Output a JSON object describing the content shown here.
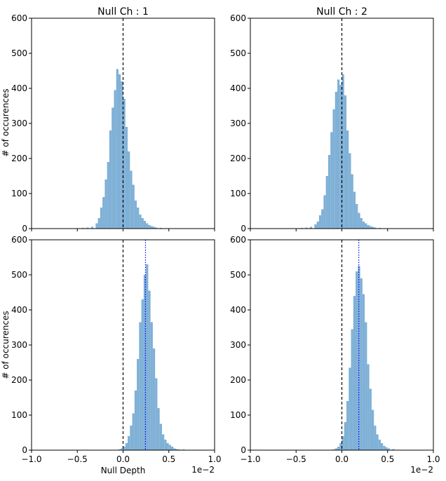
{
  "figure": {
    "titles": [
      "Null Ch : 1",
      "Null Ch : 2"
    ],
    "ylabel": "# of occurences",
    "xlabel": "Null Depth",
    "xaxis_offset_label": "1e−2",
    "colors": {
      "bars": "#7fb0d6",
      "zero_line": "#000000",
      "median_line": "#0000ff"
    }
  },
  "chart_data": [
    {
      "type": "bar",
      "panel": "top-left",
      "title": "Null Ch : 1",
      "xlabel": "",
      "ylabel": "# of occurences",
      "xlim": [
        -1.0,
        1.0
      ],
      "ylim": [
        0,
        600
      ],
      "yticks": [
        0,
        100,
        200,
        300,
        400,
        500,
        600
      ],
      "xticks": [
        -1.0,
        -0.5,
        0.0,
        0.5,
        1.0
      ],
      "x_scale_label": "1e−2",
      "bin_width": 0.025,
      "x": [
        -0.45,
        -0.4,
        -0.35,
        -0.3,
        -0.275,
        -0.25,
        -0.225,
        -0.2,
        -0.175,
        -0.15,
        -0.125,
        -0.1,
        -0.075,
        -0.05,
        -0.025,
        0.0,
        0.025,
        0.05,
        0.075,
        0.1,
        0.125,
        0.15,
        0.175,
        0.2,
        0.225,
        0.25,
        0.275,
        0.3,
        0.325,
        0.35,
        0.4,
        0.45
      ],
      "values": [
        2,
        3,
        5,
        15,
        30,
        60,
        90,
        140,
        190,
        280,
        345,
        395,
        455,
        440,
        420,
        370,
        290,
        220,
        165,
        125,
        80,
        60,
        40,
        30,
        22,
        15,
        10,
        7,
        5,
        3,
        2,
        1
      ],
      "vlines": [
        {
          "x": 0.0,
          "style": "dashed",
          "color": "#000000"
        }
      ]
    },
    {
      "type": "bar",
      "panel": "top-right",
      "title": "Null Ch : 2",
      "xlabel": "",
      "ylabel": "",
      "xlim": [
        -1.0,
        1.0
      ],
      "ylim": [
        0,
        600
      ],
      "yticks": [
        0,
        100,
        200,
        300,
        400,
        500,
        600
      ],
      "xticks": [
        -1.0,
        -0.5,
        0.0,
        0.5,
        1.0
      ],
      "x_scale_label": "1e−2",
      "bin_width": 0.025,
      "x": [
        -0.45,
        -0.4,
        -0.35,
        -0.3,
        -0.275,
        -0.25,
        -0.225,
        -0.2,
        -0.175,
        -0.15,
        -0.125,
        -0.1,
        -0.075,
        -0.05,
        -0.025,
        0.0,
        0.025,
        0.05,
        0.075,
        0.1,
        0.125,
        0.15,
        0.175,
        0.2,
        0.225,
        0.25,
        0.275,
        0.3,
        0.325,
        0.35,
        0.4,
        0.45
      ],
      "values": [
        2,
        3,
        5,
        12,
        20,
        38,
        55,
        95,
        150,
        210,
        275,
        340,
        390,
        425,
        410,
        440,
        380,
        280,
        215,
        155,
        105,
        70,
        45,
        30,
        20,
        15,
        10,
        7,
        5,
        3,
        2,
        1
      ],
      "vlines": [
        {
          "x": 0.0,
          "style": "dashed",
          "color": "#000000"
        }
      ]
    },
    {
      "type": "bar",
      "panel": "bottom-left",
      "title": "",
      "xlabel": "Null Depth",
      "ylabel": "# of occurences",
      "xlim": [
        -1.0,
        1.0
      ],
      "ylim": [
        0,
        600
      ],
      "yticks": [
        0,
        100,
        200,
        300,
        400,
        500,
        600
      ],
      "xticks": [
        -1.0,
        -0.5,
        0.0,
        0.5,
        1.0
      ],
      "x_scale_label": "1e−2",
      "bin_width": 0.025,
      "x": [
        -0.05,
        -0.025,
        0.0,
        0.025,
        0.05,
        0.075,
        0.1,
        0.125,
        0.15,
        0.175,
        0.2,
        0.225,
        0.25,
        0.275,
        0.3,
        0.325,
        0.35,
        0.375,
        0.4,
        0.425,
        0.45,
        0.475,
        0.5,
        0.525,
        0.55,
        0.575,
        0.6,
        0.65,
        0.7
      ],
      "values": [
        2,
        5,
        10,
        20,
        40,
        70,
        105,
        170,
        260,
        365,
        430,
        500,
        530,
        455,
        365,
        290,
        205,
        120,
        75,
        45,
        30,
        20,
        15,
        10,
        5,
        3,
        2,
        2,
        1
      ],
      "vlines": [
        {
          "x": 0.0,
          "style": "dashed",
          "color": "#000000"
        },
        {
          "x": 0.245,
          "style": "dotted",
          "color": "#0000ff"
        }
      ]
    },
    {
      "type": "bar",
      "panel": "bottom-right",
      "title": "",
      "xlabel": "",
      "ylabel": "",
      "xlim": [
        -1.0,
        1.0
      ],
      "ylim": [
        0,
        600
      ],
      "yticks": [
        0,
        100,
        200,
        300,
        400,
        500,
        600
      ],
      "xticks": [
        -1.0,
        -0.5,
        0.0,
        0.5,
        1.0
      ],
      "x_scale_label": "1e−2",
      "bin_width": 0.025,
      "x": [
        -0.1,
        -0.075,
        -0.05,
        -0.025,
        0.0,
        0.025,
        0.05,
        0.075,
        0.1,
        0.125,
        0.15,
        0.175,
        0.2,
        0.225,
        0.25,
        0.275,
        0.3,
        0.325,
        0.35,
        0.375,
        0.4,
        0.425,
        0.45,
        0.475,
        0.5,
        0.55,
        0.6
      ],
      "values": [
        2,
        5,
        10,
        20,
        40,
        80,
        140,
        235,
        345,
        440,
        510,
        525,
        490,
        445,
        365,
        245,
        175,
        115,
        70,
        45,
        30,
        20,
        12,
        8,
        5,
        3,
        1
      ],
      "vlines": [
        {
          "x": 0.0,
          "style": "dashed",
          "color": "#000000"
        },
        {
          "x": 0.185,
          "style": "dotted",
          "color": "#0000ff"
        }
      ]
    }
  ]
}
